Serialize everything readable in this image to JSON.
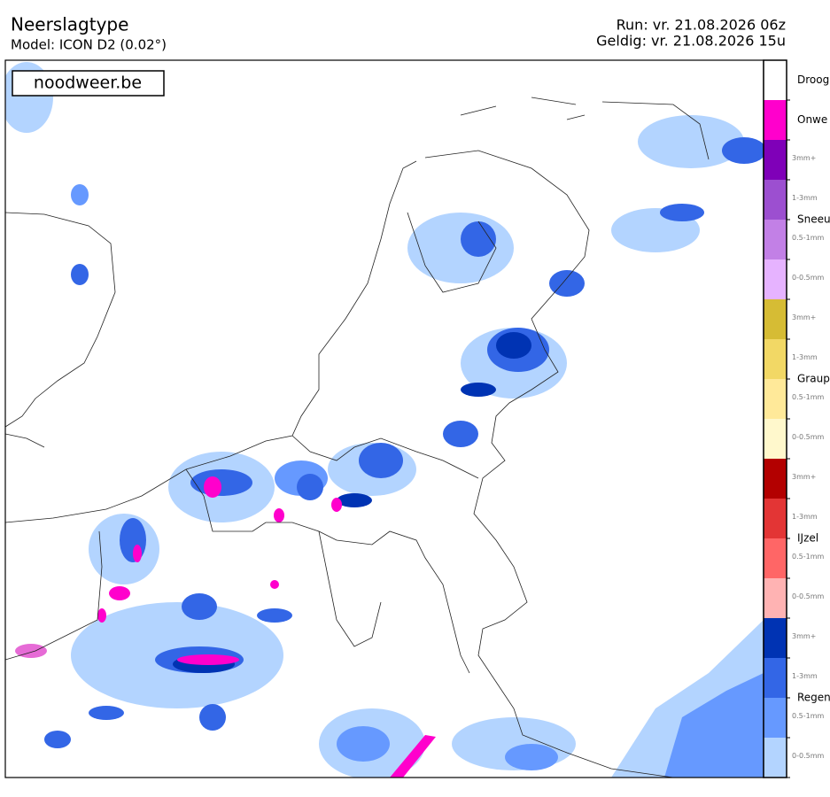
{
  "header": {
    "title": "Neerslagtype",
    "model": "Model: ICON D2 (0.02°)",
    "run": "Run: vr. 21.08.2026 06z",
    "valid": "Geldig: vr. 21.08.2026 15u"
  },
  "logo": "noodweer.be",
  "legend": {
    "groups": [
      {
        "name": "Droog",
        "classes": [
          {
            "color": "#ffffff"
          }
        ]
      },
      {
        "name": "Onwe",
        "classes": [
          {
            "color": "#ff00cc"
          }
        ]
      },
      {
        "name": "Sneeu",
        "classes": [
          {
            "label": "3mm+",
            "color": "#7f00b8"
          },
          {
            "label": "1-3mm",
            "color": "#9c4fd0"
          },
          {
            "label": "0.5-1mm",
            "color": "#c280e6"
          },
          {
            "label": "0-0.5mm",
            "color": "#e6b3ff"
          }
        ]
      },
      {
        "name": "Graup",
        "classes": [
          {
            "label": "3mm+",
            "color": "#d6bc34"
          },
          {
            "label": "1-3mm",
            "color": "#f2d865"
          },
          {
            "label": "0.5-1mm",
            "color": "#ffe999"
          },
          {
            "label": "0-0.5mm",
            "color": "#fff8cc"
          }
        ]
      },
      {
        "name": "IJzel",
        "classes": [
          {
            "label": "3mm+",
            "color": "#b30000"
          },
          {
            "label": "1-3mm",
            "color": "#e33535"
          },
          {
            "label": "0.5-1mm",
            "color": "#ff6666"
          },
          {
            "label": "0-0.5mm",
            "color": "#ffb3b3"
          }
        ]
      },
      {
        "name": "Regen",
        "classes": [
          {
            "label": "3mm+",
            "color": "#0033b3"
          },
          {
            "label": "1-3mm",
            "color": "#3366e6"
          },
          {
            "label": "0.5-1mm",
            "color": "#6699ff"
          },
          {
            "label": "0-0.5mm",
            "color": "#b3d4ff"
          }
        ]
      }
    ]
  }
}
